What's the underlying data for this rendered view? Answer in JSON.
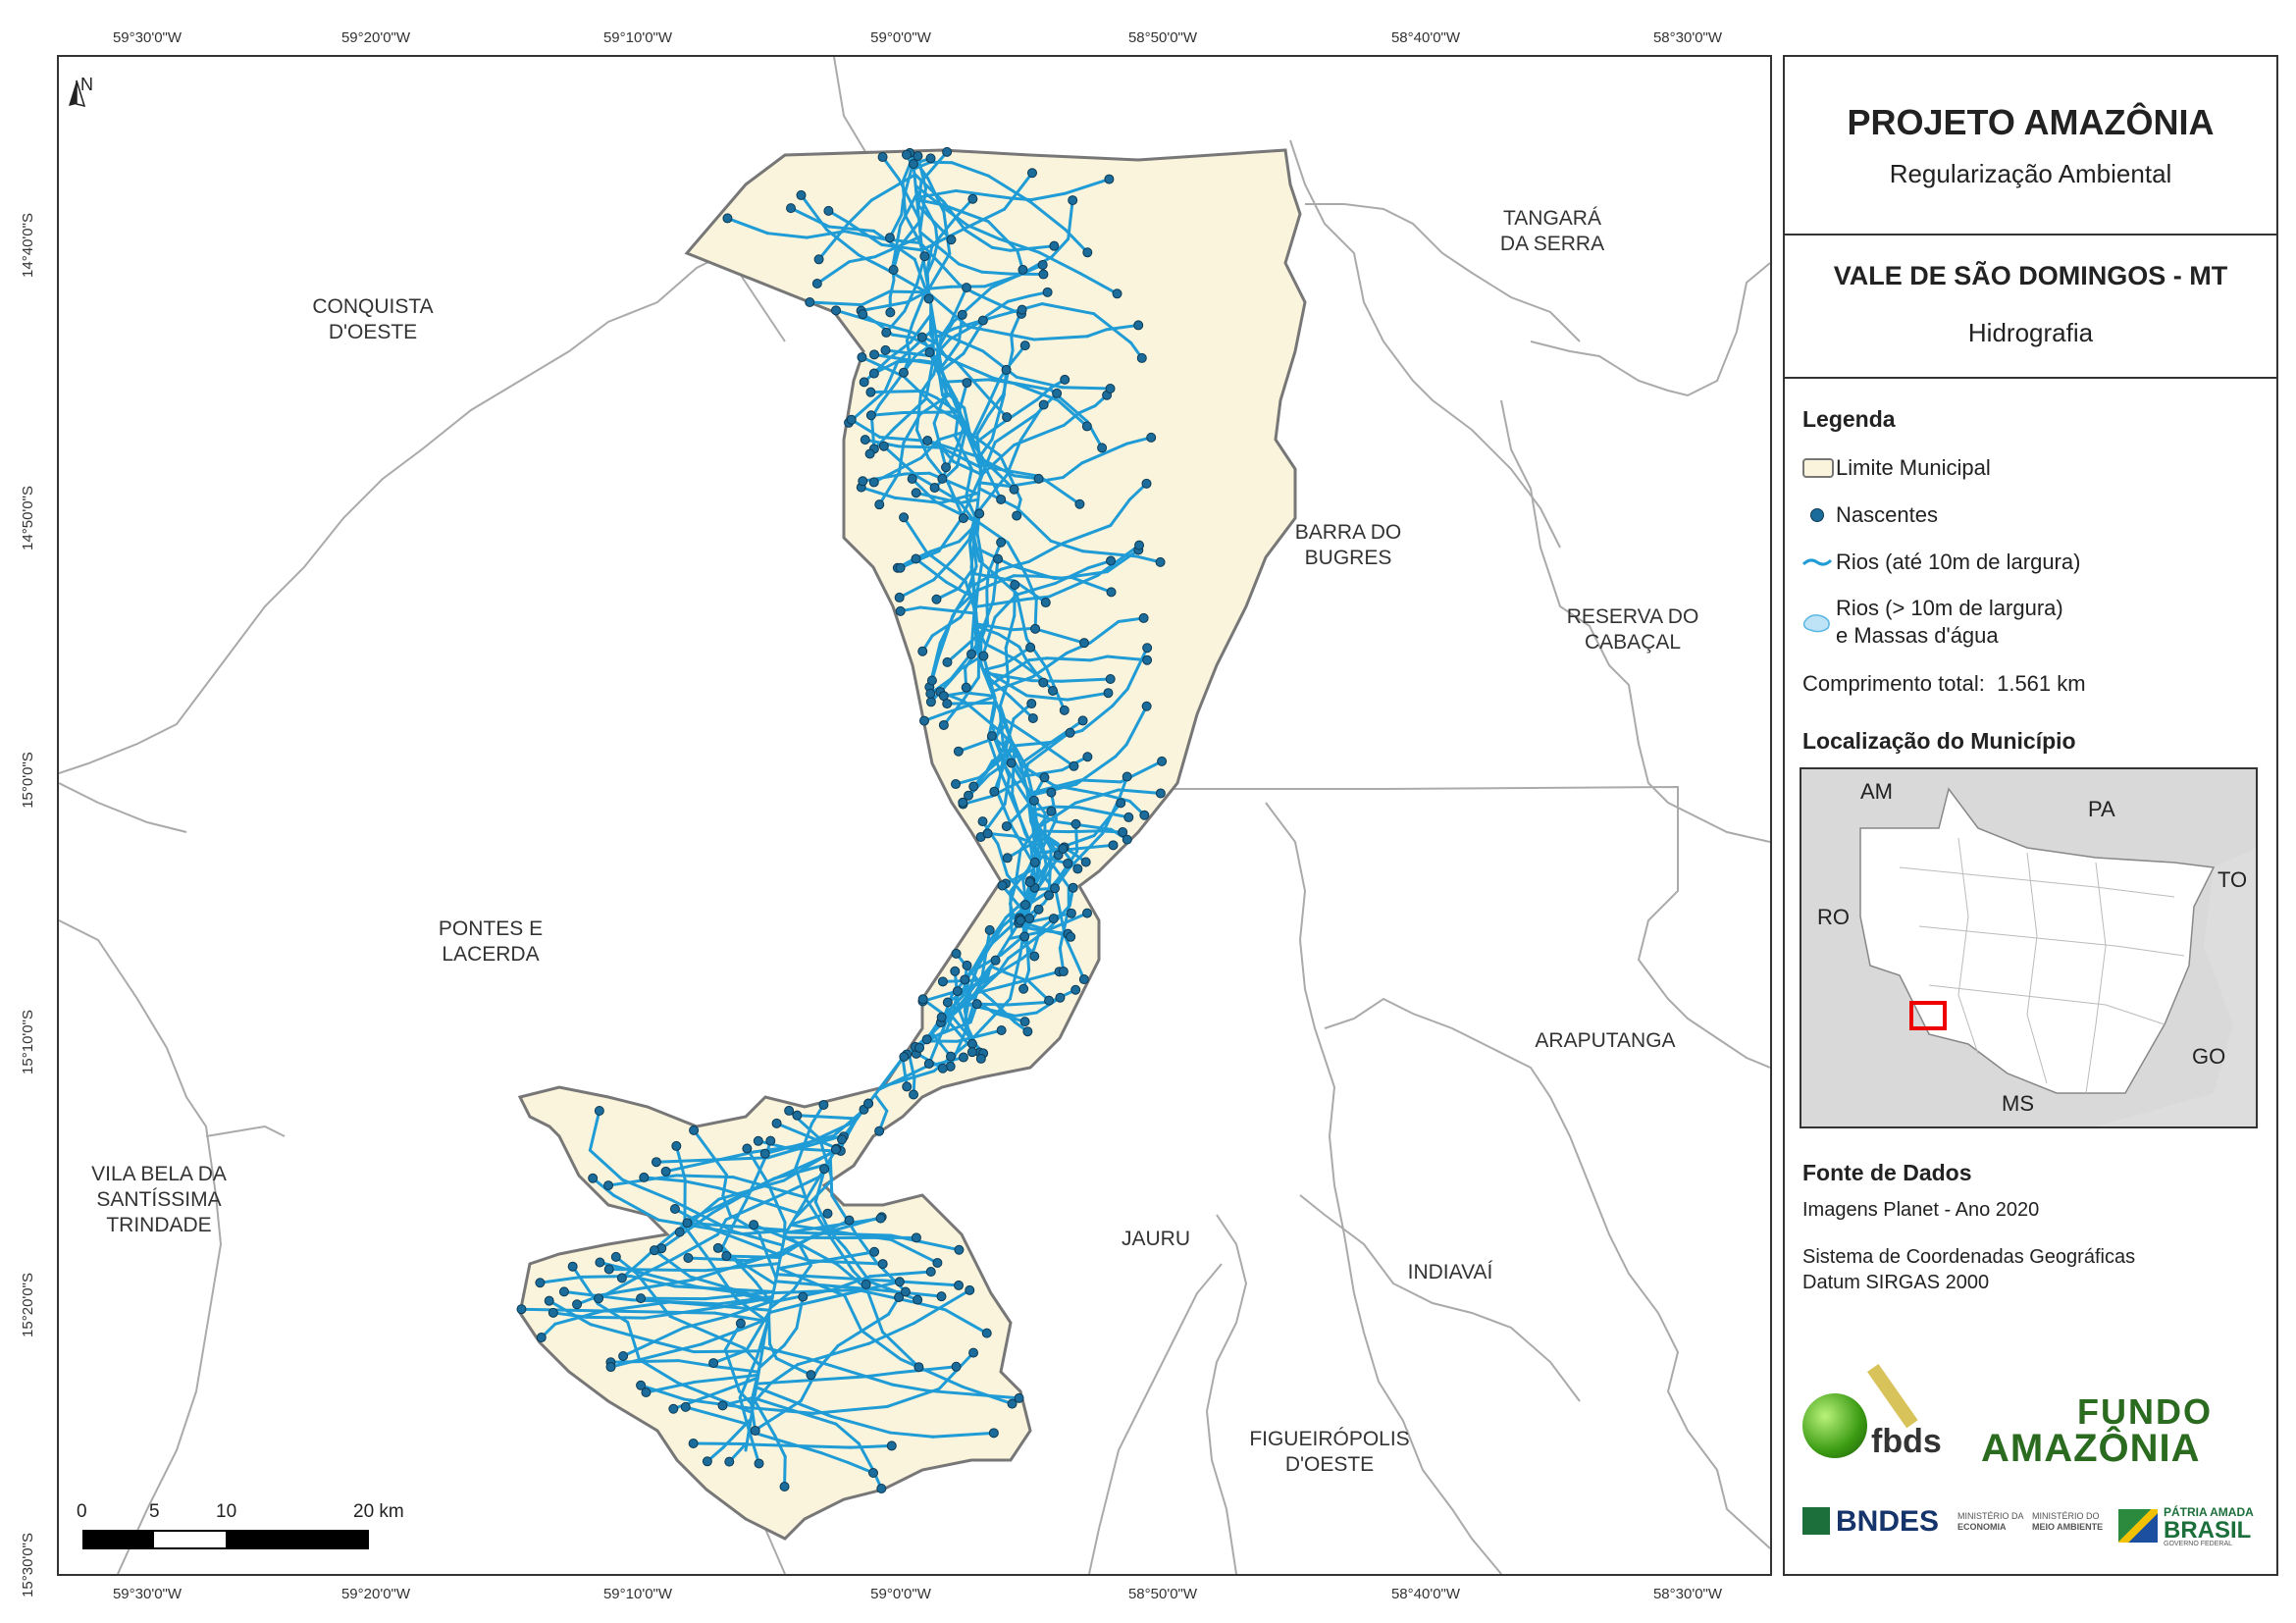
{
  "header": {
    "project_title": "PROJETO AMAZÔNIA",
    "project_subtitle": "Regularização Ambiental",
    "municipality_title": "VALE DE SÃO DOMINGOS - MT",
    "theme": "Hidrografia"
  },
  "legend": {
    "title": "Legenda",
    "items": [
      {
        "label": "Limite Municipal",
        "symbol": "boundary-icon"
      },
      {
        "label": "Nascentes",
        "symbol": "spring-point-icon"
      },
      {
        "label": "Rios (até 10m de largura)",
        "symbol": "river-line-icon"
      },
      {
        "label": "Rios (> 10m de largura)",
        "label2": "e Massas d'água",
        "symbol": "water-body-icon"
      }
    ],
    "total_length_label": "Comprimento total:",
    "total_length_value": "1.561 km"
  },
  "locator": {
    "title": "Localização do Município",
    "labels": [
      "AM",
      "PA",
      "TO",
      "RO",
      "GO",
      "MS"
    ]
  },
  "sources": {
    "title": "Fonte de Dados",
    "line1": "Imagens Planet - Ano 2020",
    "line2": "Sistema de Coordenadas Geográficas",
    "line3": "Datum SIRGAS 2000"
  },
  "logos": {
    "fbds": "fbds",
    "fundo1": "FUNDO",
    "fundo2": "AMAZÔNIA",
    "bndes": "BNDES",
    "min_eco_1": "MINISTÉRIO DA",
    "min_eco_2": "ECONOMIA",
    "min_ma_1": "MINISTÉRIO DO",
    "min_ma_2": "MEIO AMBIENTE",
    "patria": "PÁTRIA AMADA",
    "brasil": "BRASIL",
    "gov": "GOVERNO FEDERAL"
  },
  "map": {
    "north_label": "N",
    "municipalities": [
      {
        "l1": "CONQUISTA",
        "l2": "D'OESTE"
      },
      {
        "l1": "TANGARÁ",
        "l2": "DA SERRA"
      },
      {
        "l1": "BARRA DO",
        "l2": "BUGRES"
      },
      {
        "l1": "RESERVA DO",
        "l2": "CABAÇAL"
      },
      {
        "l1": "PONTES E",
        "l2": "LACERDA"
      },
      {
        "l1": "ARAPUTANGA",
        "l2": ""
      },
      {
        "l1": "VILA BELA DA",
        "l2": "SANTÍSSIMA",
        "l3": "TRINDADE"
      },
      {
        "l1": "JAURU",
        "l2": ""
      },
      {
        "l1": "INDIAVAÍ",
        "l2": ""
      },
      {
        "l1": "FIGUEIRÓPOLIS",
        "l2": "D'OESTE"
      }
    ],
    "scale": {
      "labels": [
        "0",
        "5",
        "10",
        "20 km"
      ]
    },
    "lon_ticks": [
      "59°30'0\"W",
      "59°20'0\"W",
      "59°10'0\"W",
      "59°0'0\"W",
      "58°50'0\"W",
      "58°40'0\"W",
      "58°30'0\"W"
    ],
    "lat_ticks": [
      "14°40'0\"S",
      "14°50'0\"S",
      "15°0'0\"S",
      "15°10'0\"S",
      "15°20'0\"S",
      "15°30'0\"S"
    ]
  },
  "colors": {
    "municipality_fill": "#fbf4dc",
    "river": "#1f9bd6",
    "spring": "#1b6c9a",
    "boundary": "#777777",
    "neighbor_line": "#aaaaaa"
  }
}
